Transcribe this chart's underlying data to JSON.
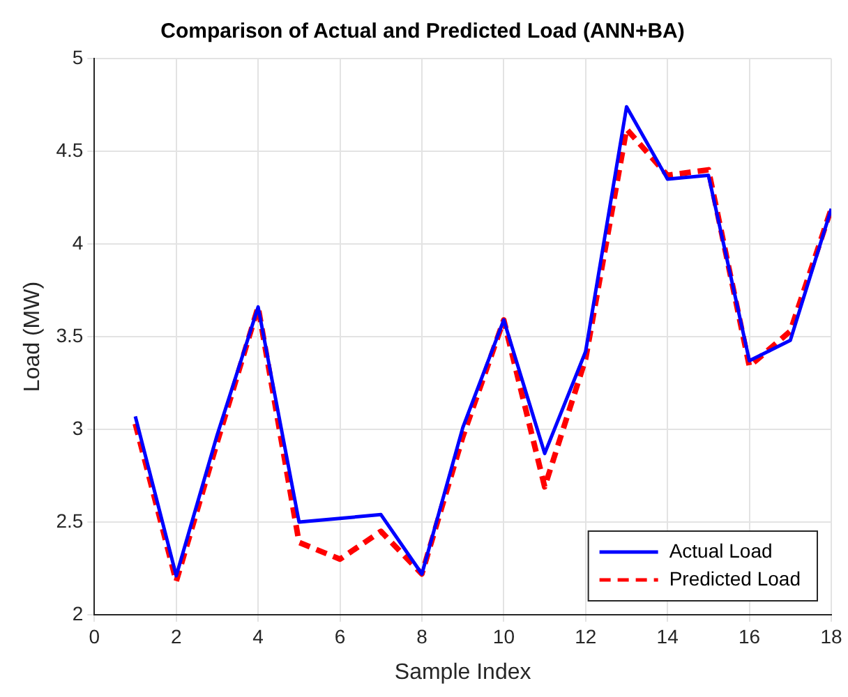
{
  "chart_data": {
    "type": "line",
    "title": "Comparison of Actual and Predicted Load (ANN+BA)",
    "xlabel": "Sample Index",
    "ylabel": "Load (MW)",
    "x": [
      1,
      2,
      3,
      4,
      5,
      6,
      7,
      8,
      9,
      10,
      11,
      12,
      13,
      14,
      15,
      16,
      17,
      18
    ],
    "series": [
      {
        "name": "Actual Load",
        "color": "#0000ff",
        "line_style": "solid",
        "values": [
          3.07,
          2.21,
          2.97,
          3.66,
          2.5,
          2.52,
          2.54,
          2.22,
          3.01,
          3.59,
          2.87,
          3.42,
          4.74,
          4.35,
          4.37,
          3.37,
          3.48,
          4.19
        ]
      },
      {
        "name": "Predicted Load",
        "color": "#ff0000",
        "line_style": "dashed",
        "values": [
          3.03,
          2.18,
          2.93,
          3.66,
          2.39,
          2.3,
          2.45,
          2.22,
          2.96,
          3.59,
          2.69,
          3.38,
          4.62,
          4.37,
          4.4,
          3.34,
          3.53,
          4.19
        ]
      }
    ],
    "xlim": [
      0,
      18
    ],
    "xticks": [
      0,
      2,
      4,
      6,
      8,
      10,
      12,
      14,
      16,
      18
    ],
    "ylim": [
      2,
      5
    ],
    "yticks": [
      2,
      2.5,
      3,
      3.5,
      4,
      4.5,
      5
    ],
    "grid": true,
    "legend": "bottom right",
    "marker": "none"
  }
}
